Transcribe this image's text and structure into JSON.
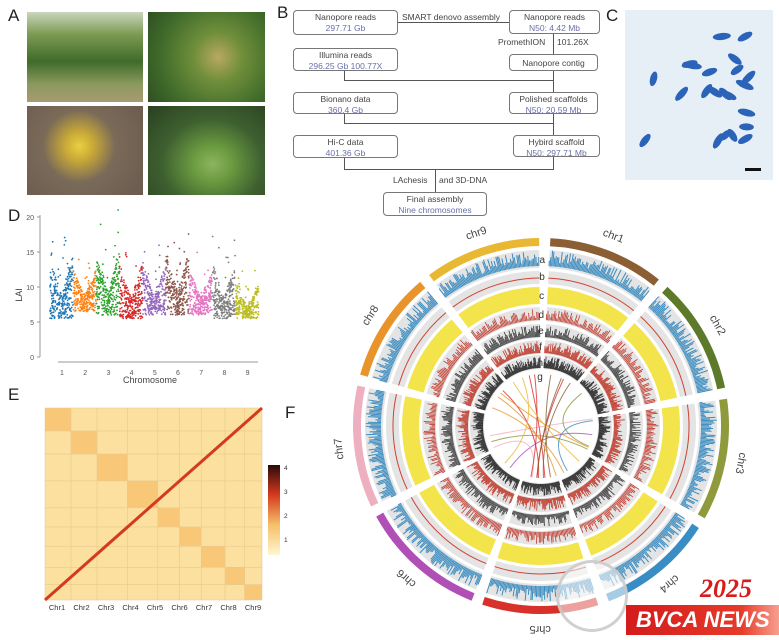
{
  "panels": {
    "a": "A",
    "b": "B",
    "c": "C",
    "d": "D",
    "e": "E",
    "f": "F"
  },
  "flowchart": {
    "nanopore_reads": {
      "title": "Nanopore reads",
      "value": "297.71 Gb"
    },
    "edge_smart": "SMART denovo assembly",
    "nanopore_reads_n50": {
      "title": "Nanopore reads",
      "value": "N50: 4.42 Mb"
    },
    "edge_promethion": "PromethION",
    "edge_coverage": "101.26X",
    "illumina": {
      "title": "Illumina reads",
      "value": "296.25 Gb 100.77X"
    },
    "nanopore_contig": {
      "title": "Nanopore contig"
    },
    "bionano": {
      "title": "Bionano data",
      "value": "360.4 Gb"
    },
    "polished": {
      "title": "Polished scaffolds",
      "value": "N50: 20.59 Mb"
    },
    "hic": {
      "title": "Hi-C data",
      "value": "401.36 Gb"
    },
    "hybrid": {
      "title": "Hybird scaffold",
      "value": "N50: 297.71 Mb"
    },
    "edge_lachesis": "LAchesis",
    "edge_3ddna": "and 3D-DNA",
    "final": {
      "title": "Final assembly",
      "value": "Nine chromosomes"
    }
  },
  "chart_data": [
    {
      "type": "scatter",
      "panel": "D",
      "xlabel": "Chromosome",
      "ylabel": "LAI",
      "ylim": [
        0,
        21
      ],
      "y_ticks": [
        "0",
        "5",
        "10",
        "15",
        "20"
      ],
      "x_ticks": [
        "1",
        "2",
        "3",
        "4",
        "5",
        "6",
        "7",
        "8",
        "9"
      ],
      "series_colors": [
        "#1f77b4",
        "#ff7f0e",
        "#2ca02c",
        "#d62728",
        "#9467bd",
        "#8c564b",
        "#e377c2",
        "#7f7f7f",
        "#bcbd22"
      ],
      "approx_range_per_chromosome": [
        [
          4,
          20
        ],
        [
          5,
          16
        ],
        [
          4.5,
          21
        ],
        [
          4,
          18.5
        ],
        [
          4.5,
          17.5
        ],
        [
          4.5,
          21
        ],
        [
          4.5,
          16.5
        ],
        [
          4,
          18.5
        ],
        [
          4,
          13
        ]
      ]
    },
    {
      "type": "heatmap",
      "panel": "E",
      "x_ticks": [
        "Chr1",
        "Chr2",
        "Chr3",
        "Chr4",
        "Chr5",
        "Chr6",
        "Chr7",
        "Chr8",
        "Chr9"
      ],
      "colorbar_ticks": [
        "4",
        "3",
        "2",
        "1"
      ],
      "colorscale": [
        "#fff6d0",
        "#f5c06a",
        "#d63a1e",
        "#2a0a0a"
      ]
    },
    {
      "type": "circos",
      "panel": "F",
      "chromosomes": [
        "chr1",
        "chr2",
        "chr3",
        "chr4",
        "chr5",
        "chr6",
        "chr7",
        "chr8",
        "chr9"
      ],
      "chromosome_colors": [
        "#8b5e34",
        "#5d7a2b",
        "#8f9a3c",
        "#3a8cc4",
        "#d8302a",
        "#b04fb5",
        "#eeb0c0",
        "#e8942a",
        "#e8b832"
      ],
      "track_labels": [
        "a",
        "b",
        "c",
        "d",
        "e",
        "f",
        "h",
        "g"
      ]
    }
  ],
  "watermark": {
    "year": "2025",
    "text": "BVCA NEWS"
  }
}
